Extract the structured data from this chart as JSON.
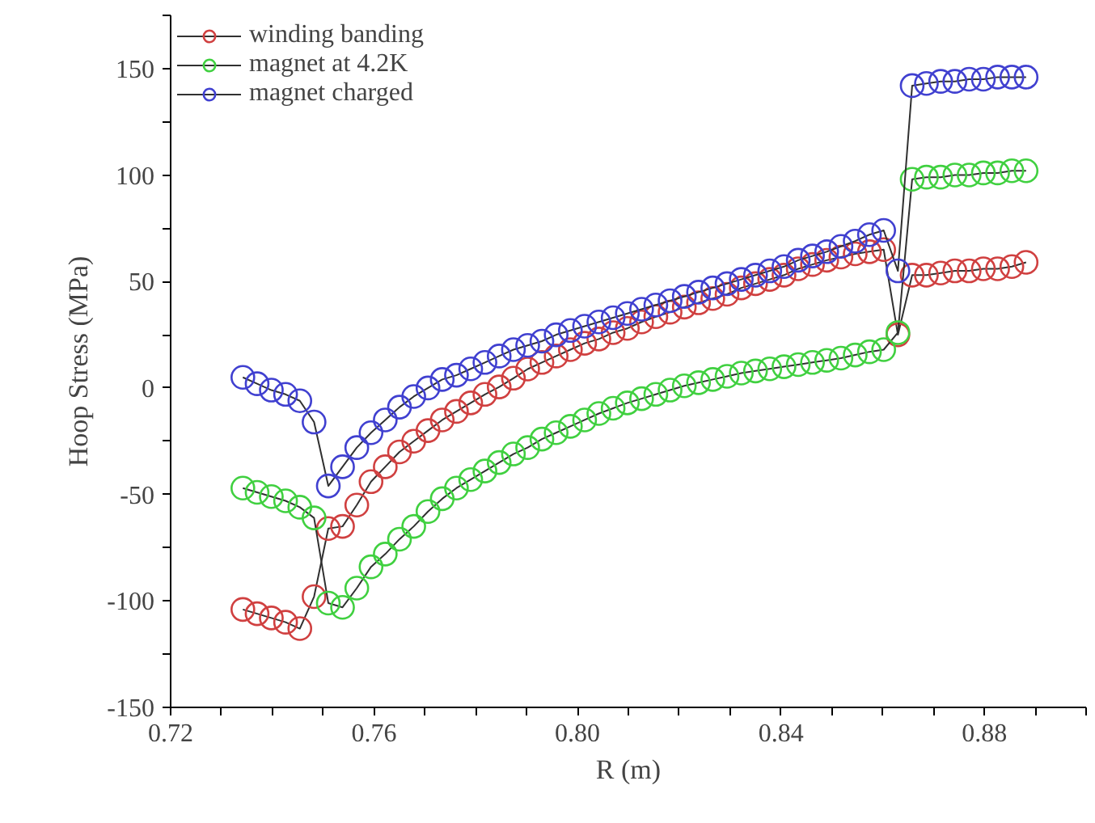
{
  "chart_data": {
    "type": "line",
    "xlabel": "R (m)",
    "ylabel": "Hoop Stress (MPa)",
    "x": [
      0.7342,
      0.737,
      0.7398,
      0.7426,
      0.7454,
      0.7482,
      0.751,
      0.7538,
      0.7566,
      0.7594,
      0.7622,
      0.765,
      0.7678,
      0.7706,
      0.7734,
      0.7762,
      0.779,
      0.7818,
      0.7846,
      0.7874,
      0.7902,
      0.793,
      0.7958,
      0.7986,
      0.8014,
      0.8042,
      0.807,
      0.8098,
      0.8126,
      0.8154,
      0.8182,
      0.821,
      0.8238,
      0.8266,
      0.8294,
      0.8322,
      0.835,
      0.8378,
      0.8406,
      0.8434,
      0.8462,
      0.849,
      0.8518,
      0.8546,
      0.8574,
      0.8602,
      0.863,
      0.8658,
      0.8686,
      0.8714,
      0.8742,
      0.877,
      0.8798,
      0.8826,
      0.8854,
      0.8882
    ],
    "series": [
      {
        "name": "winding banding",
        "color": "#d04040",
        "values": [
          -104,
          -106,
          -108,
          -110,
          -113,
          -98,
          -66,
          -65,
          -55,
          -44,
          -37,
          -30,
          -25,
          -20,
          -15,
          -11,
          -7,
          -3,
          0.5,
          4.6,
          8.9,
          12,
          15,
          18,
          21,
          23,
          26,
          28,
          31,
          33.5,
          35.6,
          38,
          40,
          42,
          44,
          47,
          49,
          51,
          53,
          56,
          58,
          60,
          61.5,
          63,
          64,
          65,
          25,
          53,
          53,
          54,
          55,
          55,
          56,
          56,
          57,
          59
        ]
      },
      {
        "name": "magnet at 4.2K",
        "color": "#40d040",
        "values": [
          -47,
          -49,
          -51,
          -53,
          -56,
          -61,
          -101,
          -103,
          -94,
          -84,
          -78,
          -71,
          -65,
          -58,
          -52,
          -47,
          -43,
          -39,
          -35,
          -31,
          -28,
          -24,
          -21,
          -18,
          -15,
          -12,
          -9.5,
          -7,
          -5,
          -3,
          -1,
          1,
          2.5,
          4,
          5.5,
          7,
          8,
          9,
          10,
          11,
          12,
          13,
          14,
          15.5,
          17,
          18,
          26,
          98,
          99,
          99,
          100,
          100,
          101,
          101,
          102,
          102
        ]
      },
      {
        "name": "magnet charged",
        "color": "#4040d0",
        "values": [
          5,
          2,
          -1,
          -3,
          -6,
          -16,
          -46,
          -37,
          -28,
          -21,
          -15,
          -9,
          -4,
          0,
          4,
          6,
          9,
          12,
          15,
          18,
          20,
          22,
          25,
          27,
          29,
          31,
          33,
          35,
          37,
          39,
          41,
          43,
          45,
          47,
          49,
          51,
          53,
          55,
          57,
          60,
          62,
          64,
          66.5,
          69,
          72,
          74,
          55,
          142,
          143,
          144,
          144,
          145,
          145,
          146,
          146,
          146
        ]
      }
    ],
    "xlim": [
      0.72,
      0.9
    ],
    "ylim": [
      -150,
      175
    ],
    "xticks": [
      0.72,
      {
        "value": 0.73,
        "label": null
      },
      {
        "value": 0.74,
        "label": null
      },
      {
        "value": 0.75,
        "label": null
      },
      0.76,
      {
        "value": 0.77,
        "label": null
      },
      {
        "value": 0.78,
        "label": null
      },
      {
        "value": 0.79,
        "label": null
      },
      {
        "value": 0.8,
        "label": "0.80"
      },
      {
        "value": 0.81,
        "label": null
      },
      {
        "value": 0.82,
        "label": null
      },
      {
        "value": 0.83,
        "label": null
      },
      0.84,
      {
        "value": 0.85,
        "label": null
      },
      {
        "value": 0.86,
        "label": null
      },
      {
        "value": 0.87,
        "label": null
      },
      0.88,
      {
        "value": 0.89,
        "label": null
      },
      {
        "value": 0.9,
        "label": null
      }
    ],
    "yticks": [
      -150,
      {
        "value": -125,
        "label": null
      },
      -100,
      {
        "value": -75,
        "label": null
      },
      -50,
      {
        "value": -25,
        "label": null
      },
      0,
      {
        "value": 25,
        "label": null
      },
      50,
      {
        "value": 75,
        "label": null
      },
      100,
      {
        "value": 125,
        "label": null
      },
      150,
      {
        "value": 175,
        "label": null
      }
    ],
    "grid": false,
    "legend": "top left",
    "marker": "circle",
    "line_style": "solid"
  }
}
